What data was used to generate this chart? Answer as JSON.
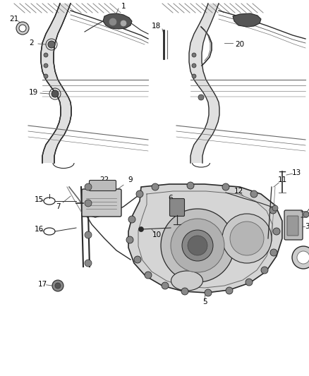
{
  "bg_color": "#ffffff",
  "line_color": "#2a2a2a",
  "text_color": "#000000",
  "gray_fill": "#d8d8d8",
  "light_gray": "#eeeeee",
  "mid_gray": "#999999",
  "font_size": 7.5
}
